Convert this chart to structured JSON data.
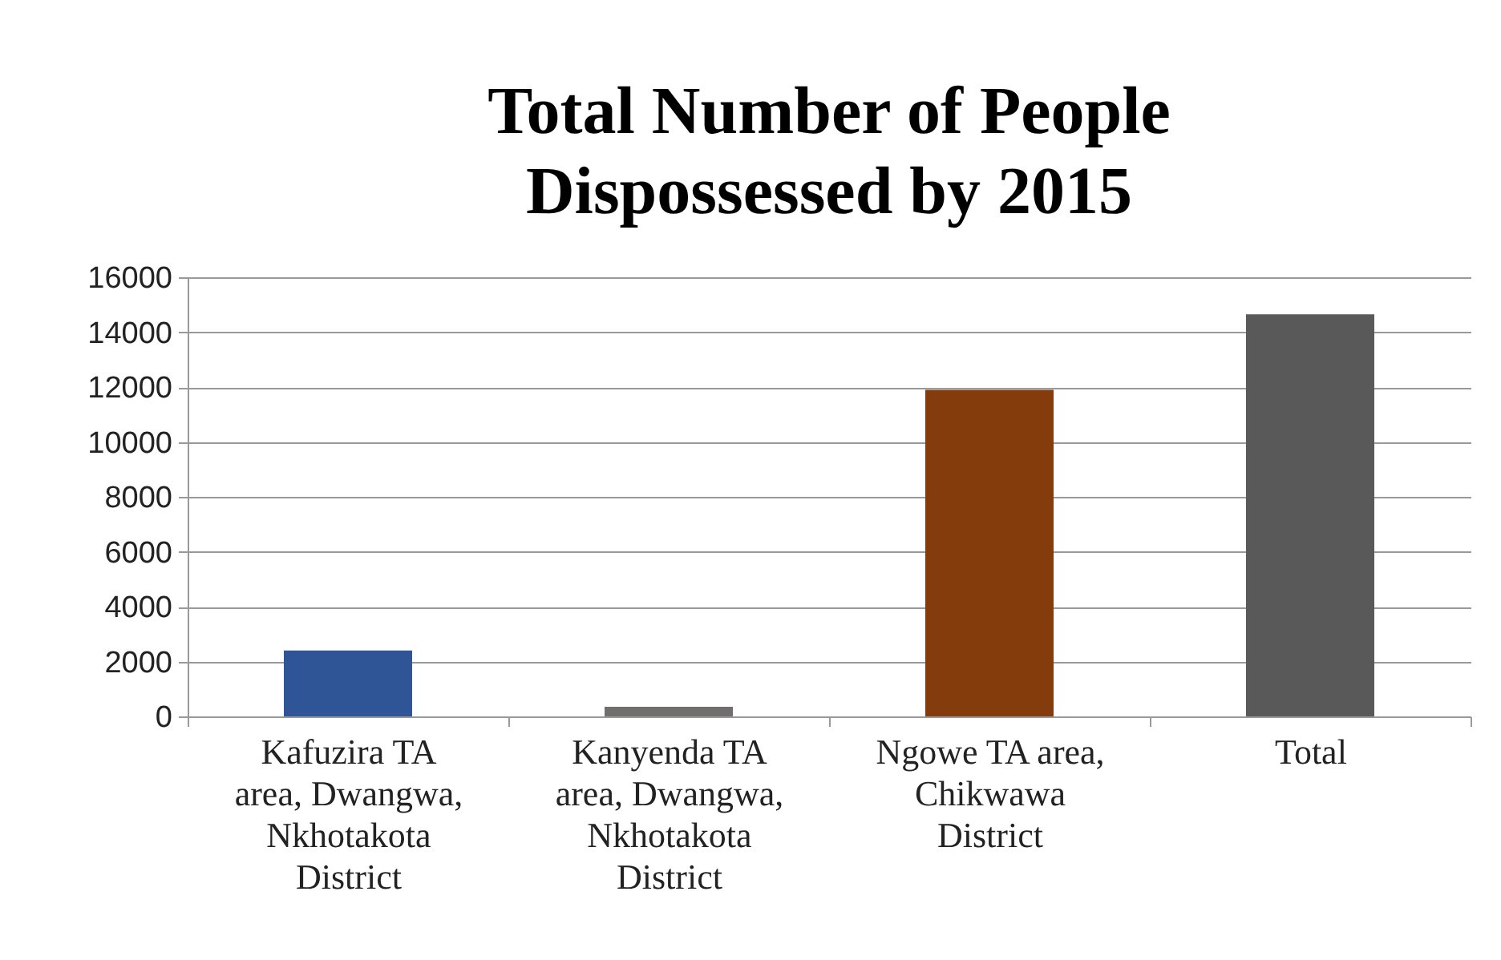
{
  "chart_data": {
    "type": "bar",
    "title": "Total Number of People Dispossessed by 2015",
    "categories": [
      "Kafuzira TA area, Dwangwa, Nkhotakota District",
      "Kanyenda TA area, Dwangwa, Nkhotakota District",
      "Ngowe TA area, Chikwawa District",
      "Total"
    ],
    "values": [
      2400,
      350,
      11900,
      14650
    ],
    "colors": [
      "#2f5597",
      "#716e6e",
      "#843c0c",
      "#595959"
    ],
    "ylim": [
      0,
      16000
    ],
    "yticks": [
      0,
      2000,
      4000,
      6000,
      8000,
      10000,
      12000,
      14000,
      16000
    ],
    "grid": "y"
  }
}
